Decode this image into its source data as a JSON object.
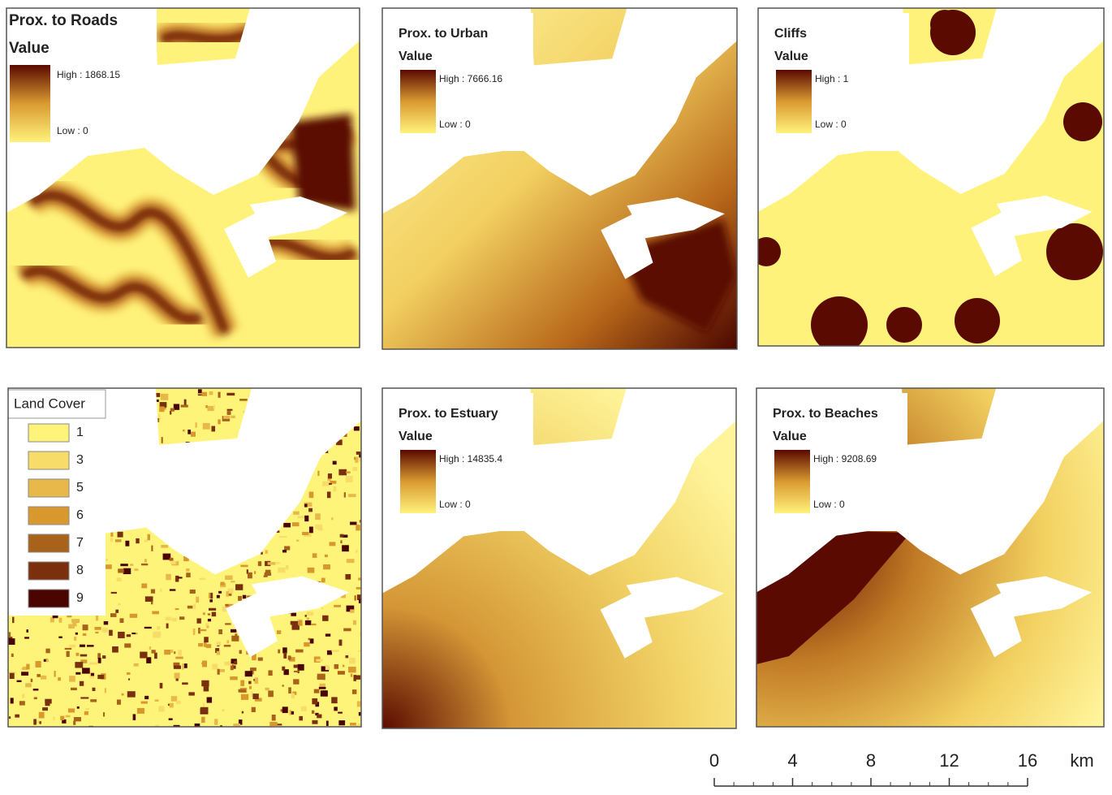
{
  "panels": [
    {
      "title": "Prox. to Roads",
      "legend_title": "Value",
      "high": "High : 1868.15",
      "low": "Low : 0"
    },
    {
      "title": "Prox. to Urban",
      "legend_title": "Value",
      "high": "High : 7666.16",
      "low": "Low : 0"
    },
    {
      "title": "Cliffs",
      "legend_title": "Value",
      "high": "High : 1",
      "low": "Low : 0"
    },
    {
      "title": "Prox. to Estuary",
      "legend_title": "Value",
      "high": "High : 14835.4",
      "low": "Low : 0"
    },
    {
      "title": "Prox. to Beaches",
      "legend_title": "Value",
      "high": "High : 9208.69",
      "low": "Low : 0"
    }
  ],
  "land_cover": {
    "title": "Land Cover",
    "classes": [
      "1",
      "3",
      "5",
      "6",
      "7",
      "8",
      "9"
    ],
    "colors": [
      "#fff47a",
      "#f7dc6a",
      "#e8b84a",
      "#d9982e",
      "#a8621a",
      "#7a300c",
      "#4a0500"
    ]
  },
  "scale_bar": {
    "ticks": [
      0,
      4,
      8,
      12,
      16
    ],
    "unit": "km"
  }
}
